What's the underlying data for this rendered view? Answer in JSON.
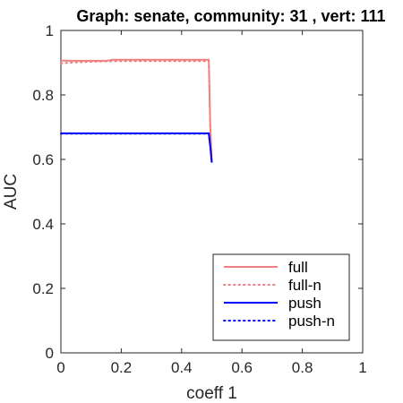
{
  "chart_data": {
    "type": "line",
    "title": "Graph: senate, community: 31 , vert: 111",
    "xlabel": "coeff 1",
    "ylabel": "AUC",
    "xlim": [
      0,
      1
    ],
    "ylim": [
      0,
      1
    ],
    "xticks": [
      0,
      0.2,
      0.4,
      0.6,
      0.8,
      1
    ],
    "xtick_labels": [
      "0",
      "0.2",
      "0.4",
      "0.6",
      "0.8",
      "1"
    ],
    "yticks": [
      0,
      0.2,
      0.4,
      0.6,
      0.8,
      1
    ],
    "ytick_labels": [
      "0",
      "0.2",
      "0.4",
      "0.6",
      "0.8",
      "1"
    ],
    "grid": false,
    "legend_position": "bottom-right",
    "series": [
      {
        "name": "full",
        "color": "#f08080",
        "style": "solid",
        "x": [
          0,
          0.02,
          0.05,
          0.1,
          0.15,
          0.16,
          0.17,
          0.2,
          0.25,
          0.3,
          0.35,
          0.4,
          0.45,
          0.49,
          0.495,
          0.5
        ],
        "y": [
          0.907,
          0.906,
          0.906,
          0.906,
          0.906,
          0.907,
          0.909,
          0.909,
          0.909,
          0.909,
          0.909,
          0.909,
          0.909,
          0.909,
          0.7,
          0.59
        ]
      },
      {
        "name": "full-n",
        "color": "#f08080",
        "style": "dotted",
        "x": [
          0,
          0.05,
          0.1,
          0.15,
          0.2,
          0.25,
          0.3,
          0.35,
          0.4,
          0.45,
          0.49,
          0.495,
          0.5
        ],
        "y": [
          0.898,
          0.901,
          0.903,
          0.904,
          0.905,
          0.905,
          0.905,
          0.905,
          0.905,
          0.905,
          0.905,
          0.7,
          0.59
        ]
      },
      {
        "name": "push",
        "color": "#0000ff",
        "style": "solid",
        "x": [
          0,
          0.1,
          0.2,
          0.3,
          0.4,
          0.49,
          0.495,
          0.5
        ],
        "y": [
          0.681,
          0.681,
          0.681,
          0.681,
          0.681,
          0.681,
          0.64,
          0.59
        ]
      },
      {
        "name": "push-n",
        "color": "#0000ff",
        "style": "dotted",
        "x": [
          0,
          0.1,
          0.2,
          0.3,
          0.4,
          0.49,
          0.495,
          0.5
        ],
        "y": [
          0.68,
          0.68,
          0.68,
          0.68,
          0.68,
          0.68,
          0.64,
          0.59
        ]
      }
    ]
  }
}
